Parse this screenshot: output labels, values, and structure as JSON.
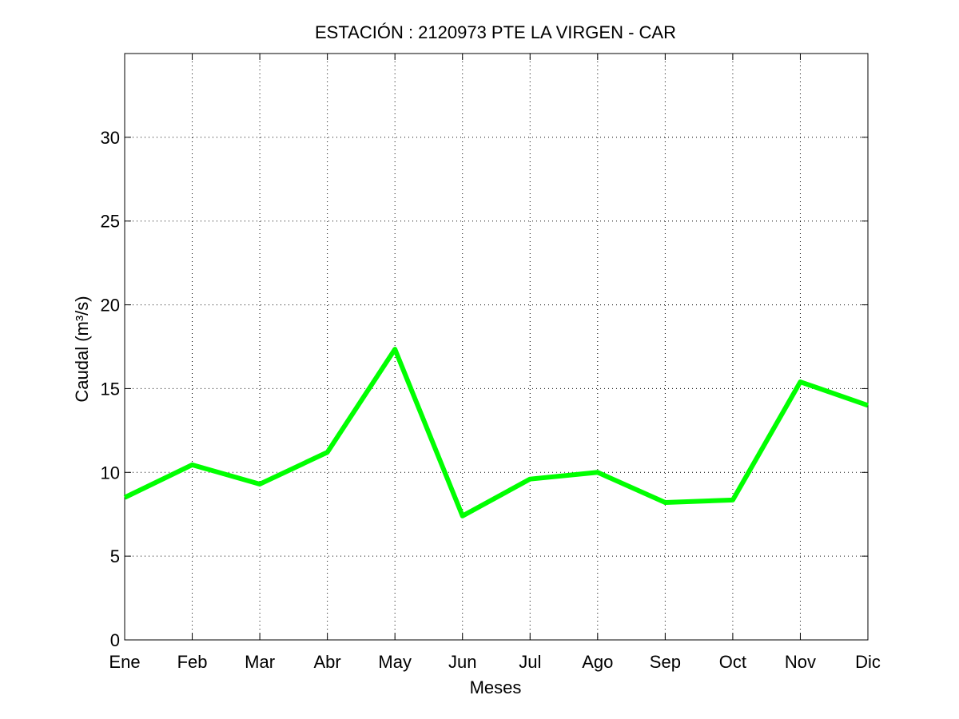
{
  "chart_data": {
    "type": "line",
    "title": "ESTACIÓN :  2120973  PTE LA VIRGEN - CAR",
    "xlabel": "Meses",
    "ylabel": "Caudal (m³/s)",
    "categories": [
      "Ene",
      "Feb",
      "Mar",
      "Abr",
      "May",
      "Jun",
      "Jul",
      "Ago",
      "Sep",
      "Oct",
      "Nov",
      "Dic"
    ],
    "series": [
      {
        "values": [
          8.5,
          10.45,
          9.3,
          11.2,
          17.35,
          7.4,
          9.6,
          10.0,
          8.2,
          8.35,
          15.4,
          14.0
        ],
        "color": "#00ff00"
      }
    ],
    "ylim": [
      0,
      35
    ],
    "yticks": [
      0,
      5,
      10,
      15,
      20,
      25,
      30
    ],
    "grid": true,
    "grid_style": "dotted",
    "legend": "none"
  }
}
